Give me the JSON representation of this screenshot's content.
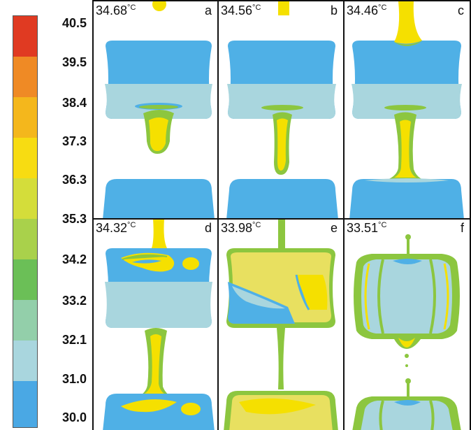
{
  "colorbar": {
    "labels": [
      "40.5",
      "39.5",
      "38.4",
      "37.3",
      "36.3",
      "35.3",
      "34.2",
      "33.2",
      "32.1",
      "31.0",
      "30.0"
    ],
    "colors": [
      "#e03a22",
      "#ef8a25",
      "#f4b71c",
      "#f7dc12",
      "#d4dd3a",
      "#a9d14b",
      "#6bbf57",
      "#93cfaa",
      "#a9d6de",
      "#4aa8e4",
      "#3b4aa6"
    ]
  },
  "panels": [
    {
      "temp": "34.68",
      "unit": "°C",
      "letter": "a"
    },
    {
      "temp": "34.56",
      "unit": "°C",
      "letter": "b"
    },
    {
      "temp": "34.46",
      "unit": "°C",
      "letter": "c"
    },
    {
      "temp": "34.32",
      "unit": "°C",
      "letter": "d"
    },
    {
      "temp": "33.98",
      "unit": "°C",
      "letter": "e"
    },
    {
      "temp": "33.51",
      "unit": "°C",
      "letter": "f"
    }
  ],
  "palette": {
    "blue": "#4fb0e6",
    "lightblue": "#a9d6de",
    "green": "#8cc63f",
    "yellow": "#f5e000",
    "paleyellow": "#e8e060"
  }
}
